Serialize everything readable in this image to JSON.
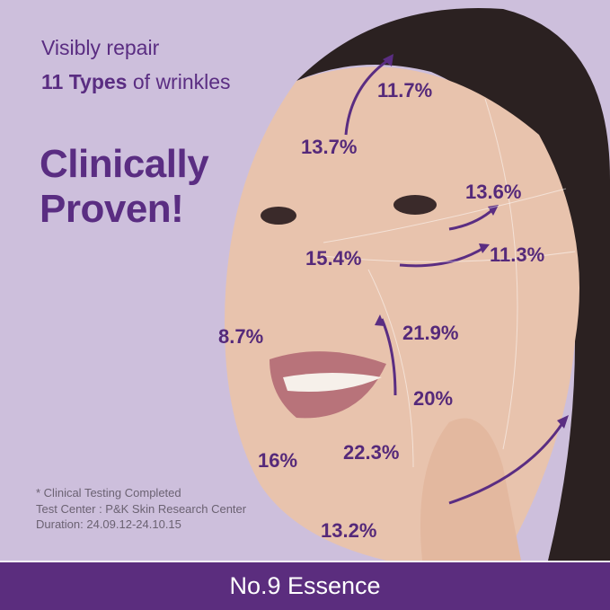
{
  "headline": {
    "line1": "Visibly repair",
    "line2_bold": "11 Types",
    "line2_rest": "of wrinkles",
    "title1": "Clinically",
    "title2": "Proven!"
  },
  "percentages": [
    "11.7%",
    "13.7%",
    "13.6%",
    "15.4%",
    "11.3%",
    "8.7%",
    "21.9%",
    "20%",
    "16%",
    "22.3%",
    "13.2%"
  ],
  "notes": [
    "* Clinical Testing Completed",
    "Test Center : P&K Skin Research Center",
    "Duration: 24.09.12-24.10.15"
  ],
  "product_name": "No.9 Essence",
  "colors": {
    "background": "#cdbfdc",
    "accent": "#5a2d82",
    "footer": "#5b2d7e"
  }
}
